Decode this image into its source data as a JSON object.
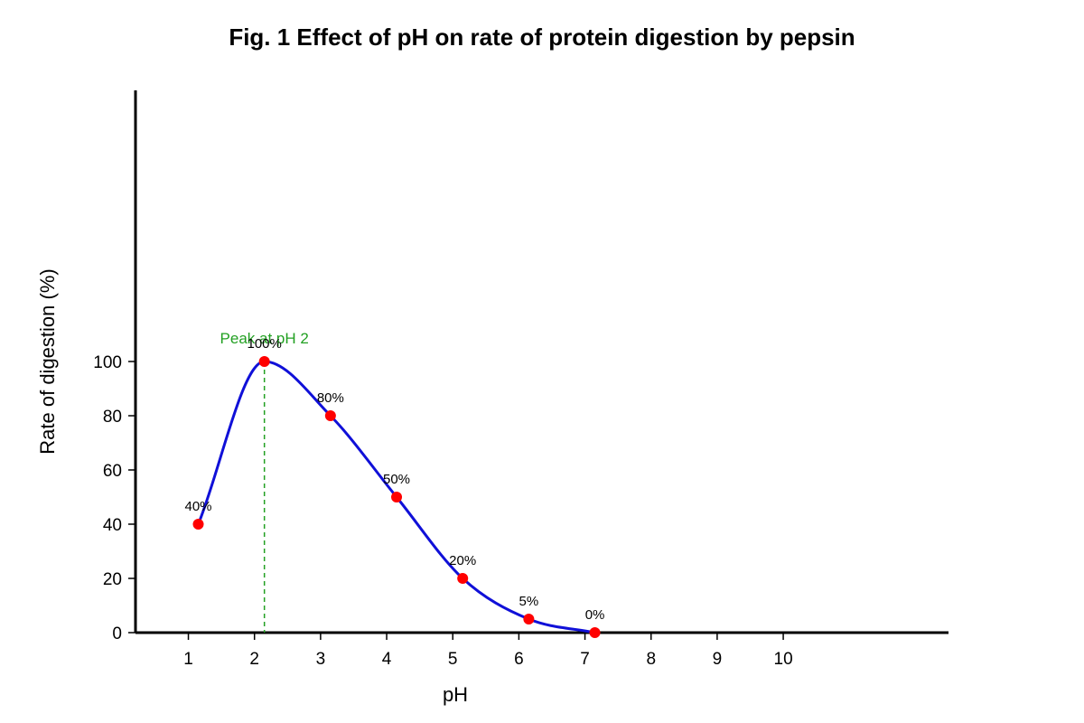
{
  "chart_data": {
    "type": "line",
    "title": "Fig. 1 Effect of pH on rate of protein digestion by pepsin",
    "xlabel": "pH",
    "ylabel": "Rate of digestion (%)",
    "x_ticks": [
      "1",
      "2",
      "3",
      "4",
      "5",
      "6",
      "7",
      "8",
      "9",
      "10"
    ],
    "y_ticks": [
      "0",
      "20",
      "40",
      "60",
      "80",
      "100"
    ],
    "y_tick_values": [
      0,
      20,
      40,
      60,
      80,
      100
    ],
    "xlim": [
      0.2,
      12.5
    ],
    "ylim": [
      0,
      200
    ],
    "grid": false,
    "series": [
      {
        "x": [
          1.15,
          2.15,
          3.15,
          4.15,
          5.15,
          6.15,
          7.15
        ],
        "y": [
          40,
          100,
          80,
          50,
          20,
          5,
          0
        ],
        "labels": [
          "40%",
          "100%",
          "80%",
          "50%",
          "20%",
          "5%",
          "0%"
        ],
        "line_color": "#1010d8",
        "marker_color": "#ff0000"
      }
    ],
    "annotations": [
      {
        "text": "Peak at pH 2",
        "x": 2.15,
        "y": 100,
        "color": "#22a022",
        "line_style": "dashed"
      }
    ]
  }
}
